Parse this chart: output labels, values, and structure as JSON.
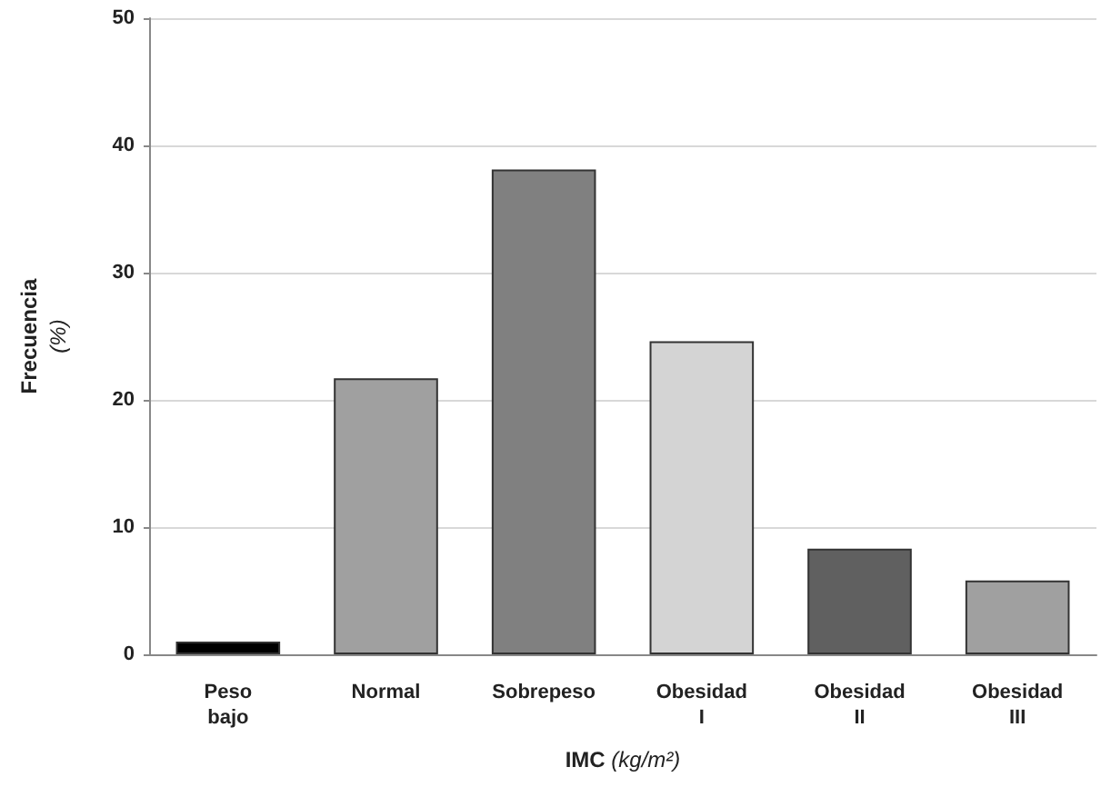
{
  "chart_data": {
    "type": "bar",
    "categories": [
      "Peso\nbajo",
      "Normal",
      "Sobrepeso",
      "Obesidad\nI",
      "Obesidad\nII",
      "Obesidad\nIII"
    ],
    "values": [
      1.0,
      21.7,
      38.1,
      24.6,
      8.3,
      5.8
    ],
    "colors": [
      "#000000",
      "#a0a0a0",
      "#808080",
      "#d4d4d4",
      "#606060",
      "#a0a0a0"
    ],
    "xlabel": "IMC (kg/m²)",
    "ylabel": "Frecuencia\n(%)",
    "ylim": [
      0,
      50
    ],
    "yticks": [
      0,
      10,
      20,
      30,
      40,
      50
    ],
    "grid": "y"
  }
}
